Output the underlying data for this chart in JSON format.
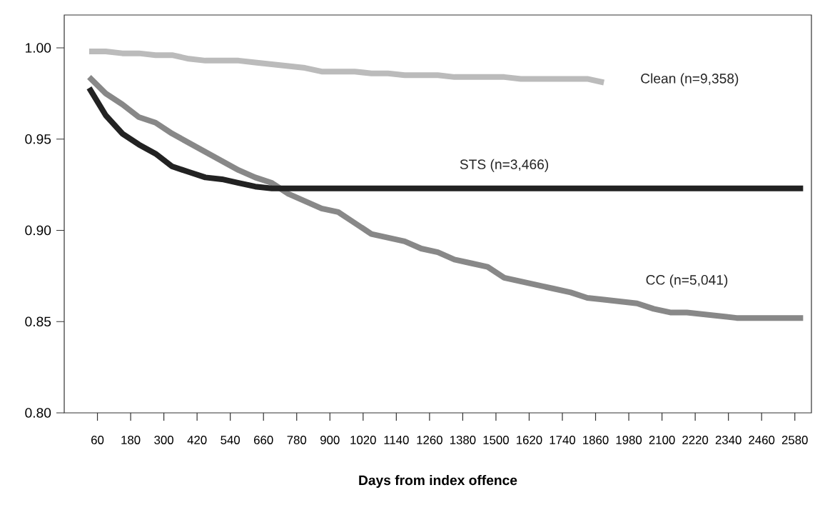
{
  "chart_data": {
    "type": "line",
    "xlabel": "Days from index offence",
    "x": [
      30,
      90,
      150,
      210,
      270,
      330,
      390,
      450,
      510,
      570,
      630,
      690,
      750,
      810,
      870,
      930,
      990,
      1050,
      1110,
      1170,
      1230,
      1290,
      1350,
      1410,
      1470,
      1530,
      1590,
      1650,
      1710,
      1770,
      1830,
      1890,
      1950,
      2010,
      2070,
      2130,
      2190,
      2250,
      2310,
      2370,
      2430,
      2490,
      2550,
      2610
    ],
    "xlim": [
      -60,
      2640
    ],
    "xticks": [
      60,
      180,
      300,
      420,
      540,
      660,
      780,
      900,
      1020,
      1140,
      1260,
      1380,
      1500,
      1620,
      1740,
      1860,
      1980,
      2100,
      2220,
      2340,
      2460,
      2580
    ],
    "ylim": [
      0.8,
      1.018
    ],
    "yticks": [
      {
        "value": 0.8,
        "label": "0.80"
      },
      {
        "value": 0.85,
        "label": "0.85"
      },
      {
        "value": 0.9,
        "label": "0.90"
      },
      {
        "value": 0.95,
        "label": "0.95"
      },
      {
        "value": 1.0,
        "label": "1.00"
      }
    ],
    "grid": false,
    "marker": "none",
    "line_style": "solid",
    "series": [
      {
        "name": "Clean (n=9,358)",
        "color": "#bbbbbb",
        "x": [
          30,
          90,
          150,
          210,
          270,
          330,
          390,
          450,
          510,
          570,
          630,
          690,
          750,
          810,
          870,
          930,
          990,
          1050,
          1110,
          1170,
          1230,
          1290,
          1350,
          1410,
          1470,
          1530,
          1590,
          1650,
          1710,
          1770,
          1830,
          1890
        ],
        "values": [
          0.998,
          0.998,
          0.997,
          0.997,
          0.996,
          0.996,
          0.994,
          0.993,
          0.993,
          0.993,
          0.992,
          0.991,
          0.99,
          0.989,
          0.987,
          0.987,
          0.987,
          0.986,
          0.986,
          0.985,
          0.985,
          0.985,
          0.984,
          0.984,
          0.984,
          0.984,
          0.983,
          0.983,
          0.983,
          0.983,
          0.983,
          0.981
        ]
      },
      {
        "name": "CC (n=5,041)",
        "color": "#888888",
        "values": [
          0.984,
          0.975,
          0.969,
          0.962,
          0.959,
          0.953,
          0.948,
          0.943,
          0.938,
          0.933,
          0.929,
          0.926,
          0.92,
          0.916,
          0.912,
          0.91,
          0.904,
          0.898,
          0.896,
          0.894,
          0.89,
          0.888,
          0.884,
          0.882,
          0.88,
          0.874,
          0.872,
          0.87,
          0.868,
          0.866,
          0.863,
          0.862,
          0.861,
          0.86,
          0.857,
          0.855,
          0.855,
          0.854,
          0.853,
          0.852,
          0.852,
          0.852,
          0.852,
          0.852
        ]
      },
      {
        "name": "STS (n=3,466)",
        "color": "#222222",
        "values": [
          0.978,
          0.963,
          0.953,
          0.947,
          0.942,
          0.935,
          0.932,
          0.929,
          0.928,
          0.926,
          0.924,
          0.923,
          0.923,
          0.923,
          0.923,
          0.923,
          0.923,
          0.923,
          0.923,
          0.923,
          0.923,
          0.923,
          0.923,
          0.923,
          0.923,
          0.923,
          0.923,
          0.923,
          0.923,
          0.923,
          0.923,
          0.923,
          0.923,
          0.923,
          0.923,
          0.923,
          0.923,
          0.923,
          0.923,
          0.923,
          0.923,
          0.923,
          0.923,
          0.923
        ]
      }
    ]
  }
}
